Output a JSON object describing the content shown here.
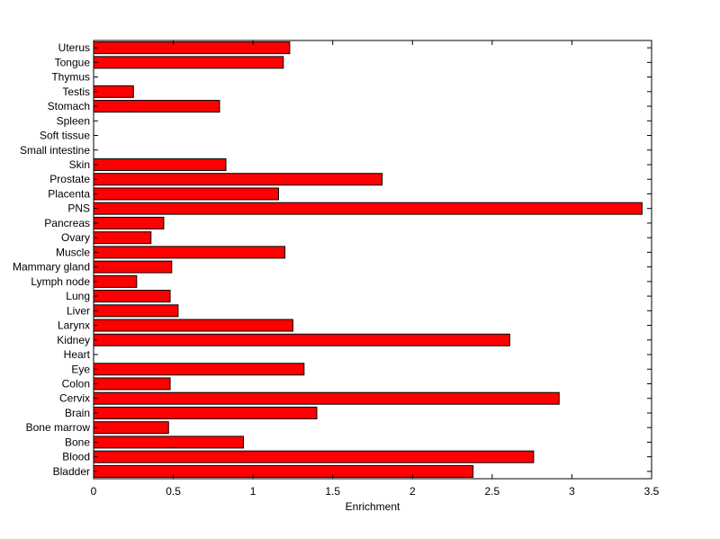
{
  "chart_data": {
    "type": "bar",
    "orientation": "horizontal",
    "categories": [
      "Uterus",
      "Tongue",
      "Thymus",
      "Testis",
      "Stomach",
      "Spleen",
      "Soft tissue",
      "Small intestine",
      "Skin",
      "Prostate",
      "Placenta",
      "PNS",
      "Pancreas",
      "Ovary",
      "Muscle",
      "Mammary gland",
      "Lymph node",
      "Lung",
      "Liver",
      "Larynx",
      "Kidney",
      "Heart",
      "Eye",
      "Colon",
      "Cervix",
      "Brain",
      "Bone marrow",
      "Bone",
      "Blood",
      "Bladder"
    ],
    "values": [
      1.23,
      1.19,
      0,
      0.25,
      0.79,
      0,
      0,
      0,
      0.83,
      1.81,
      1.16,
      3.44,
      0.44,
      0.36,
      1.2,
      0.49,
      0.27,
      0.48,
      0.53,
      1.25,
      2.61,
      0,
      1.32,
      0.48,
      2.92,
      1.4,
      0.47,
      0.94,
      2.76,
      2.38
    ],
    "xlabel": "Enrichment",
    "ylabel": "",
    "title": "",
    "xlim": [
      0,
      3.5
    ],
    "xticks": [
      0,
      0.5,
      1,
      1.5,
      2,
      2.5,
      3,
      3.5
    ],
    "xtick_labels": [
      "0",
      "0.5",
      "1",
      "1.5",
      "2",
      "2.5",
      "3",
      "3.5"
    ],
    "bar_color": "#ff0000",
    "edge_color": "#000000",
    "grid": false
  }
}
